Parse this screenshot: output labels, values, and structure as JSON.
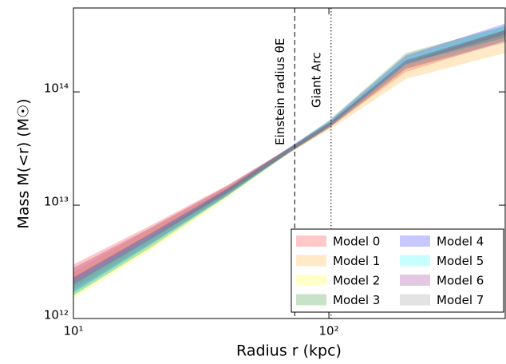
{
  "chart_data": {
    "type": "band",
    "xlabel": "Radius r (kpc)",
    "ylabel": "Mass M(<r) (M☉)",
    "xscale": "log",
    "yscale": "log",
    "xlim": [
      10,
      490
    ],
    "ylim": [
      1000000000000.0,
      550000000000000.0
    ],
    "xticks": [
      {
        "value": 10,
        "label": "10¹"
      },
      {
        "value": 100,
        "label": "10²"
      }
    ],
    "yticks": [
      {
        "value": 1000000000000.0,
        "label": "10¹²"
      },
      {
        "value": 10000000000000.0,
        "label": "10¹³"
      },
      {
        "value": 100000000000000.0,
        "label": "10¹⁴"
      }
    ],
    "legend": "lower right",
    "x": [
      10,
      20,
      40,
      70,
      100,
      200,
      488
    ],
    "series": [
      {
        "name": "Model 0",
        "color": "#ff0000",
        "lower": [
          2100000000000.0,
          5200000000000.0,
          13000000000000.0,
          29000000000000.0,
          48000000000000.0,
          150000000000000.0,
          280000000000000.0
        ],
        "upper": [
          3000000000000.0,
          6600000000000.0,
          15000000000000.0,
          32000000000000.0,
          53000000000000.0,
          180000000000000.0,
          350000000000000.0
        ]
      },
      {
        "name": "Model 1",
        "color": "#ff9900",
        "lower": [
          1900000000000.0,
          4900000000000.0,
          12500000000000.0,
          29000000000000.0,
          46000000000000.0,
          130000000000000.0,
          220000000000000.0
        ],
        "upper": [
          2600000000000.0,
          6200000000000.0,
          14500000000000.0,
          32000000000000.0,
          51000000000000.0,
          160000000000000.0,
          280000000000000.0
        ]
      },
      {
        "name": "Model 2",
        "color": "#ffff00",
        "lower": [
          1500000000000.0,
          4000000000000.0,
          11500000000000.0,
          29000000000000.0,
          48000000000000.0,
          160000000000000.0,
          290000000000000.0
        ],
        "upper": [
          2000000000000.0,
          5000000000000.0,
          13500000000000.0,
          32000000000000.0,
          53000000000000.0,
          190000000000000.0,
          360000000000000.0
        ]
      },
      {
        "name": "Model 3",
        "color": "#008000",
        "lower": [
          1600000000000.0,
          4200000000000.0,
          12000000000000.0,
          29000000000000.0,
          50000000000000.0,
          180000000000000.0,
          300000000000000.0
        ],
        "upper": [
          2100000000000.0,
          5200000000000.0,
          13800000000000.0,
          32000000000000.0,
          56000000000000.0,
          220000000000000.0,
          380000000000000.0
        ]
      },
      {
        "name": "Model 4",
        "color": "#0000ff",
        "lower": [
          1700000000000.0,
          4500000000000.0,
          12200000000000.0,
          29500000000000.0,
          49000000000000.0,
          175000000000000.0,
          320000000000000.0
        ],
        "upper": [
          2300000000000.0,
          5600000000000.0,
          14000000000000.0,
          32500000000000.0,
          55000000000000.0,
          210000000000000.0,
          400000000000000.0
        ]
      },
      {
        "name": "Model 5",
        "color": "#00ffff",
        "lower": [
          1600000000000.0,
          4400000000000.0,
          12000000000000.0,
          29000000000000.0,
          48500000000000.0,
          170000000000000.0,
          300000000000000.0
        ],
        "upper": [
          2200000000000.0,
          5500000000000.0,
          13800000000000.0,
          32000000000000.0,
          54000000000000.0,
          200000000000000.0,
          380000000000000.0
        ]
      },
      {
        "name": "Model 6",
        "color": "#800080",
        "lower": [
          2000000000000.0,
          5000000000000.0,
          12800000000000.0,
          29000000000000.0,
          48000000000000.0,
          160000000000000.0,
          280000000000000.0
        ],
        "upper": [
          2800000000000.0,
          6300000000000.0,
          14800000000000.0,
          32000000000000.0,
          53000000000000.0,
          190000000000000.0,
          350000000000000.0
        ]
      },
      {
        "name": "Model 7",
        "color": "#808080",
        "lower": [
          1800000000000.0,
          4600000000000.0,
          12200000000000.0,
          29500000000000.0,
          48000000000000.0,
          160000000000000.0,
          270000000000000.0
        ],
        "upper": [
          2300000000000.0,
          5600000000000.0,
          14000000000000.0,
          32000000000000.0,
          53000000000000.0,
          190000000000000.0,
          340000000000000.0
        ]
      }
    ],
    "vlines": [
      {
        "x": 73.5,
        "label": "Einstein radius θE",
        "style": "dashed"
      },
      {
        "x": 102,
        "label": "Giant Arc",
        "style": "dotted"
      }
    ]
  }
}
